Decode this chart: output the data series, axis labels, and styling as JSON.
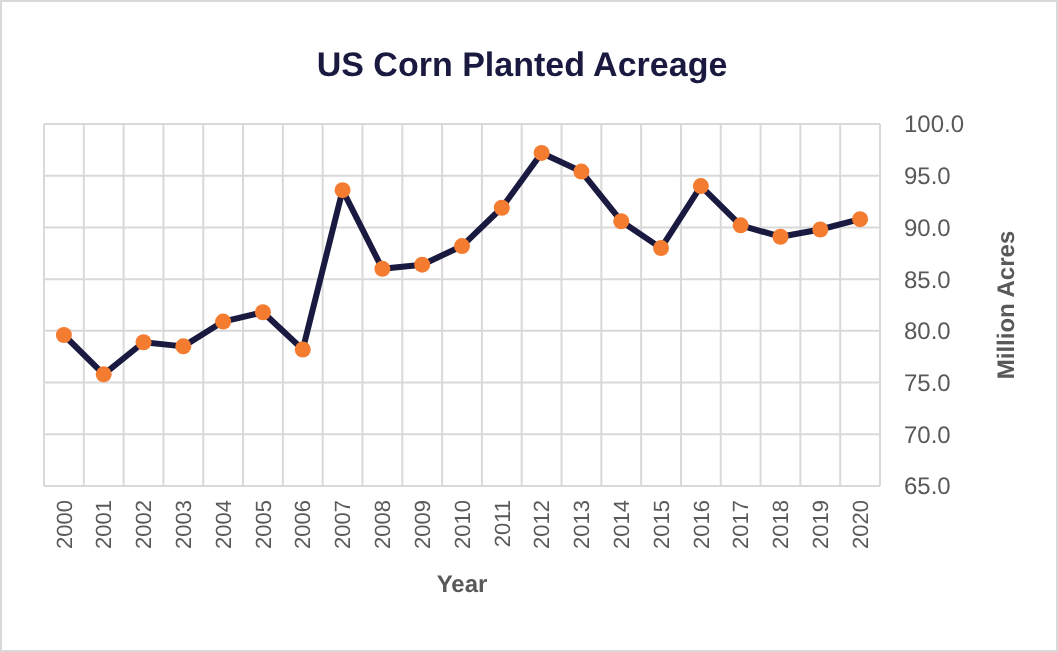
{
  "chart_data": {
    "type": "line",
    "title": "US Corn Planted Acreage",
    "xlabel": "Year",
    "ylabel": "Million Acres",
    "categories": [
      "2000",
      "2001",
      "2002",
      "2003",
      "2004",
      "2005",
      "2006",
      "2007",
      "2008",
      "2009",
      "2010",
      "2011",
      "2012",
      "2013",
      "2014",
      "2015",
      "2016",
      "2017",
      "2018",
      "2019",
      "2020"
    ],
    "series": [
      {
        "color": "#1a1a40",
        "colors": [
          "#f47c30",
          "#f47c30",
          "#f47c30",
          "#f47c30",
          "#f47c30",
          "#f47c30",
          "#f47c30",
          "#f47c30",
          "#f47c30",
          "#f47c30",
          "#f47c30",
          "#f47c30",
          "#f47c30",
          "#f47c30",
          "#f47c30",
          "#f47c30",
          "#f47c30",
          "#f47c30",
          "#f47c30",
          "#f47c30",
          "#f47c30"
        ],
        "values": [
          79.6,
          75.8,
          78.9,
          78.5,
          80.9,
          81.8,
          78.2,
          93.6,
          86.0,
          86.4,
          88.2,
          91.9,
          97.2,
          95.4,
          90.6,
          88.0,
          94.0,
          90.2,
          89.1,
          89.8,
          90.8
        ]
      }
    ],
    "ylim": [
      65,
      100
    ],
    "yticks": [
      {
        "value": 65,
        "label": "65.0"
      },
      {
        "value": 70,
        "label": "70.0"
      },
      {
        "value": 75,
        "label": "75.0"
      },
      {
        "value": 80,
        "label": "80.0"
      },
      {
        "value": 85,
        "label": "85.0"
      },
      {
        "value": 90,
        "label": "90.0"
      },
      {
        "value": 95,
        "label": "95.0"
      },
      {
        "value": 100,
        "label": "100.0"
      }
    ],
    "grid": true,
    "marker": "circle",
    "line_style": "solid"
  }
}
